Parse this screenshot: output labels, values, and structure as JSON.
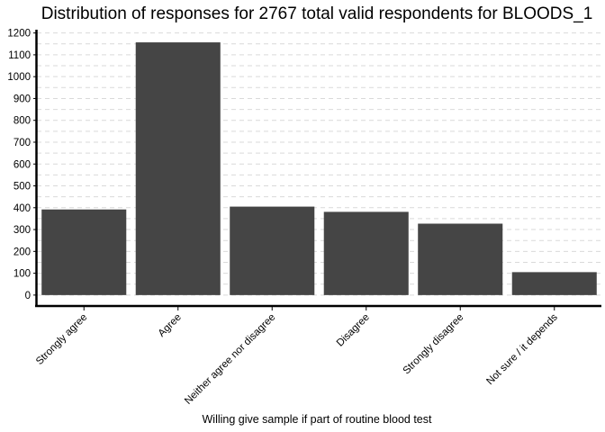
{
  "chart_data": {
    "type": "bar",
    "title": "Distribution of responses for 2767 total valid respondents for BLOODS_1",
    "xlabel": "Willing give sample if part of routine blood test",
    "ylabel": "",
    "categories": [
      "Strongly agree",
      "Agree",
      "Neither agree nor disagree",
      "Disagree",
      "Strongly disagree",
      "Not sure / it depends"
    ],
    "values": [
      392,
      1157,
      405,
      381,
      327,
      105
    ],
    "ylim": [
      -50,
      1215
    ],
    "yticks": [
      0,
      100,
      200,
      300,
      400,
      500,
      600,
      700,
      800,
      900,
      1000,
      1100,
      1200
    ],
    "grid": true,
    "legend": "none",
    "bar_color": "#454545",
    "grid_color": "#d9d9d9"
  }
}
